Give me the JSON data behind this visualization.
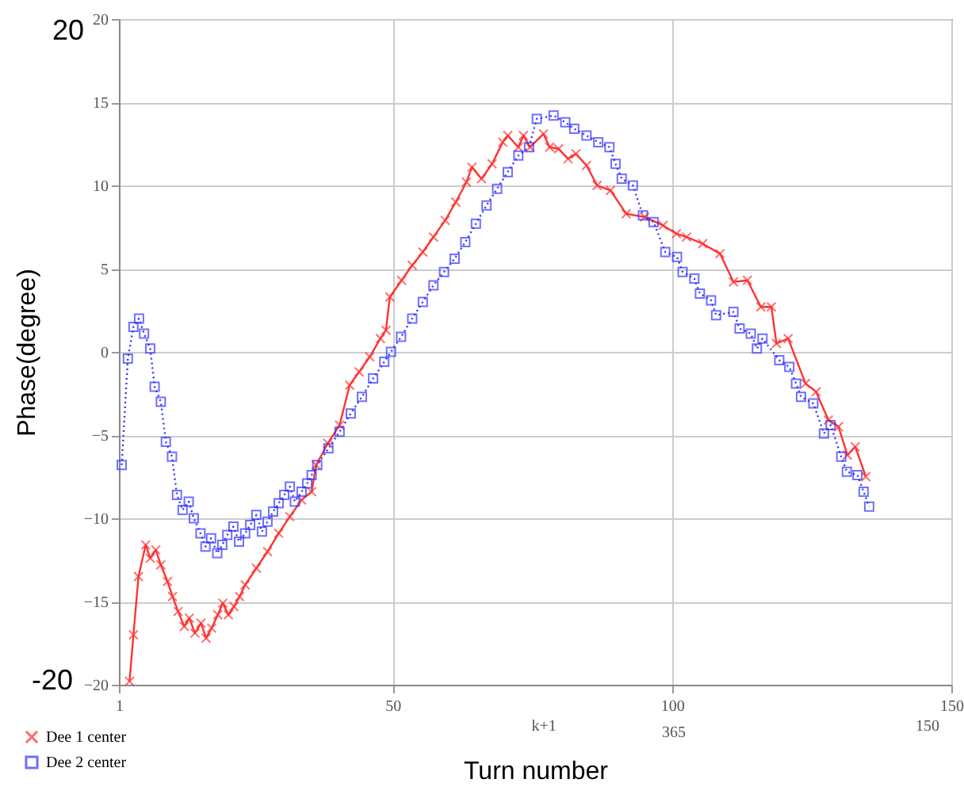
{
  "chart_data": {
    "type": "line",
    "xlabel": "Turn number",
    "ylabel": "Phase(degree)",
    "xlim": [
      1,
      150
    ],
    "xticks": [
      1,
      50,
      100,
      150
    ],
    "ylim": [
      -20,
      20
    ],
    "yticks": [
      -20,
      -15,
      -10,
      -5,
      0,
      5,
      10,
      15,
      20
    ],
    "grid": true,
    "legend": "bottom left",
    "annotations": [
      "20",
      "-20",
      "k+1",
      "365",
      "150"
    ],
    "series": [
      {
        "name": "Dee 1 center",
        "color": "#ff3333",
        "marker": "cross",
        "line_style": "solid",
        "x": [
          2.9,
          3.6,
          4.5,
          5.8,
          6.6,
          7.6,
          8.5,
          9.7,
          10.6,
          11.6,
          12.7,
          13.6,
          14.6,
          15.7,
          16.6,
          17.6,
          18.7,
          19.6,
          20.6,
          21.6,
          22.6,
          23.6,
          25.6,
          27.6,
          29.6,
          31.6,
          33.7,
          35.5,
          36.3,
          38.4,
          40.5,
          42.3,
          44,
          45.9,
          47.8,
          48.8,
          49.5,
          51.6,
          53.5,
          55.4,
          57.3,
          59.4,
          61.3,
          63.2,
          64.2,
          65.9,
          67.8,
          69.7,
          70.6,
          72.5,
          73.4,
          74.6,
          77,
          78.1,
          79.7,
          81.4,
          82.8,
          84.7,
          86.6,
          89,
          91.8,
          95.1,
          98.4,
          100.8,
          102.6,
          105.5,
          108.6,
          111,
          113.5,
          115.9,
          117.8,
          118.7,
          120.8,
          123.9,
          125.8,
          128,
          129.8,
          131.4,
          132.8,
          134.7
        ],
        "values": [
          -19.8,
          -17.0,
          -13.5,
          -11.6,
          -12.4,
          -11.9,
          -12.8,
          -13.8,
          -14.7,
          -15.6,
          -16.5,
          -16.0,
          -16.9,
          -16.3,
          -17.2,
          -16.6,
          -15.8,
          -15.1,
          -15.8,
          -15.3,
          -14.7,
          -14.0,
          -13.0,
          -12.0,
          -10.9,
          -9.9,
          -8.9,
          -8.4,
          -6.8,
          -5.5,
          -4.4,
          -2.0,
          -1.2,
          -0.3,
          0.8,
          1.3,
          3.3,
          4.3,
          5.2,
          6.0,
          6.9,
          7.9,
          9.0,
          10.2,
          11.1,
          10.4,
          11.3,
          12.6,
          13.0,
          12.3,
          13.0,
          12.3,
          13.1,
          12.3,
          12.2,
          11.6,
          11.9,
          11.2,
          10.0,
          9.7,
          8.3,
          8.1,
          7.6,
          7.1,
          6.9,
          6.5,
          5.9,
          4.2,
          4.3,
          2.7,
          2.7,
          0.5,
          0.8,
          -1.9,
          -2.4,
          -4.1,
          -4.5,
          -6.2,
          -5.7,
          -7.5
        ]
      },
      {
        "name": "Dee 2 center",
        "color": "#3333ff",
        "marker": "square",
        "line_style": "dotted",
        "x": [
          1.5,
          2.6,
          3.6,
          4.6,
          5.5,
          6.6,
          7.4,
          8.5,
          9.4,
          10.5,
          11.4,
          12.4,
          13.5,
          14.4,
          15.6,
          16.5,
          17.5,
          18.6,
          19.5,
          20.4,
          21.5,
          22.5,
          23.6,
          24.5,
          25.6,
          26.6,
          27.6,
          28.6,
          29.6,
          30.6,
          31.6,
          32.5,
          33.7,
          34.7,
          35.5,
          36.5,
          38.5,
          40.5,
          42.5,
          44.5,
          46.5,
          48.5,
          49.7,
          51.5,
          53.5,
          55.4,
          57.3,
          59.2,
          61.1,
          63,
          64.9,
          66.8,
          68.7,
          70.6,
          72.5,
          74.4,
          75.8,
          78.8,
          80.9,
          82.5,
          84.7,
          86.8,
          88.8,
          89.9,
          91,
          93,
          94.8,
          96.7,
          98.8,
          100.9,
          101.9,
          104,
          105,
          107,
          107.9,
          111,
          112.1,
          114.1,
          115.2,
          116.2,
          119.2,
          121,
          122.2,
          123.1,
          125.3,
          127.2,
          128.4,
          130.3,
          131.3,
          133.2,
          134.3,
          135.3
        ],
        "values": [
          -6.8,
          -0.4,
          1.5,
          2.0,
          1.1,
          0.2,
          -2.1,
          -3.0,
          -5.4,
          -6.3,
          -8.6,
          -9.5,
          -9.0,
          -10.0,
          -10.9,
          -11.7,
          -11.2,
          -12.1,
          -11.6,
          -11.0,
          -10.5,
          -11.4,
          -10.9,
          -10.4,
          -9.8,
          -10.8,
          -10.2,
          -9.6,
          -9.1,
          -8.6,
          -8.1,
          -9.0,
          -8.4,
          -7.9,
          -7.4,
          -6.8,
          -5.8,
          -4.8,
          -3.7,
          -2.7,
          -1.6,
          -0.6,
          0.0,
          0.9,
          2.0,
          3.0,
          4.0,
          4.8,
          5.6,
          6.6,
          7.7,
          8.8,
          9.8,
          10.8,
          11.8,
          12.3,
          14.0,
          14.2,
          13.8,
          13.4,
          13.0,
          12.6,
          12.3,
          11.3,
          10.4,
          10.0,
          8.2,
          7.8,
          6.0,
          5.7,
          4.8,
          4.4,
          3.5,
          3.1,
          2.2,
          2.4,
          1.4,
          1.1,
          0.2,
          0.8,
          -0.5,
          -0.9,
          -1.9,
          -2.7,
          -3.1,
          -4.9,
          -4.4,
          -6.3,
          -7.2,
          -7.4,
          -8.4,
          -9.3
        ]
      }
    ]
  }
}
